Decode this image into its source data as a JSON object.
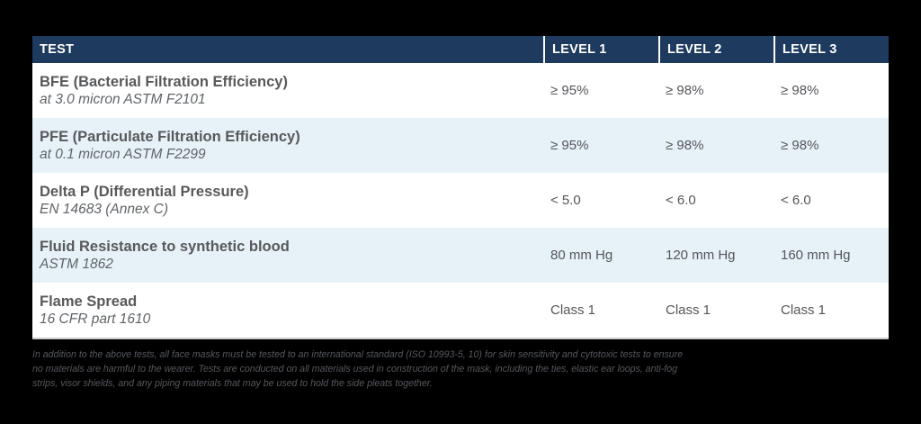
{
  "table": {
    "header": {
      "test_label": "TEST",
      "levels": [
        "LEVEL 1",
        "LEVEL 2",
        "LEVEL 3"
      ]
    },
    "rows": [
      {
        "name": "BFE (Bacterial Filtration Efficiency)",
        "detail": "at 3.0 micron ASTM F2101",
        "values": [
          "≥ 95%",
          "≥ 98%",
          "≥ 98%"
        ]
      },
      {
        "name": "PFE (Particulate Filtration Efficiency)",
        "detail": "at 0.1 micron ASTM F2299",
        "values": [
          "≥ 95%",
          "≥ 98%",
          "≥ 98%"
        ]
      },
      {
        "name": "Delta P (Differential Pressure)",
        "detail": "EN 14683 (Annex C)",
        "values": [
          "< 5.0",
          "< 6.0",
          "< 6.0"
        ]
      },
      {
        "name": "Fluid Resistance to synthetic blood",
        "detail": "ASTM 1862",
        "values": [
          "80 mm Hg",
          "120 mm Hg",
          "160 mm Hg"
        ]
      },
      {
        "name": "Flame Spread",
        "detail": "16 CFR part 1610",
        "values": [
          "Class 1",
          "Class 1",
          "Class 1"
        ]
      }
    ]
  },
  "footnote": {
    "lines": [
      "In addition to the above tests, all face masks must be tested to an international standard (ISO 10993-5, 10) for skin sensitivity and cytotoxic tests to ensure",
      "no materials are harmful to the wearer. Tests are conducted on all materials used in construction of the mask, including the ties, elastic ear loops, anti-fog",
      "strips, visor shields, and any piping materials that may be used to hold the side pleats together."
    ]
  },
  "colors": {
    "header_navy": "#1e3a5e",
    "row_alt_blue": "#e7f2f8",
    "text_gray": "#58595b",
    "background": "#000000"
  }
}
